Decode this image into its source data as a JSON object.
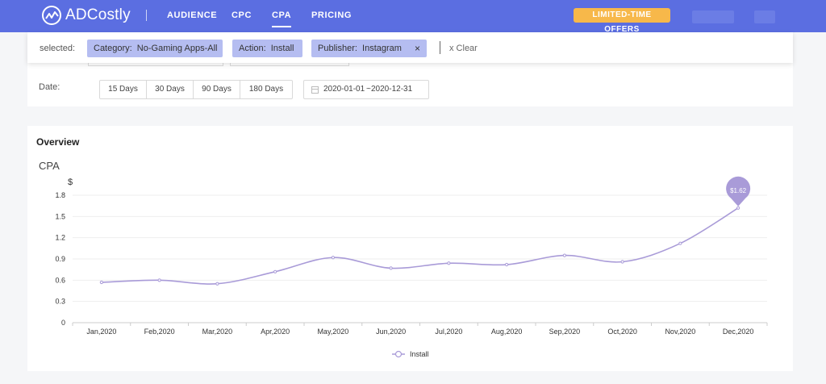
{
  "app": {
    "brand": "ADCostly"
  },
  "nav": {
    "items": [
      {
        "label": "AUDIENCE",
        "active": false
      },
      {
        "label": "CPC",
        "active": false
      },
      {
        "label": "CPA",
        "active": true
      },
      {
        "label": "PRICING",
        "active": false
      }
    ],
    "offers_label": "LIMITED-TIME OFFERS"
  },
  "filters": {
    "selected_label": "selected:",
    "chips": [
      {
        "label": "Category:  No-Gaming Apps-All",
        "removable": false
      },
      {
        "label": "Action:  Install",
        "removable": false
      },
      {
        "label": "Publisher:  Instagram",
        "removable": true
      }
    ],
    "clear_label": "x Clear",
    "date_label": "Date:",
    "date_options": [
      "15 Days",
      "30 Days",
      "90 Days",
      "180 Days"
    ],
    "range_start": "2020-01-01",
    "range_sep": "~",
    "range_end": "2020-12-31"
  },
  "overview": {
    "title": "Overview"
  },
  "chart_data": {
    "type": "line",
    "title": "CPA",
    "ylabel": "$",
    "xlabel": "",
    "categories": [
      "Jan,2020",
      "Feb,2020",
      "Mar,2020",
      "Apr,2020",
      "May,2020",
      "Jun,2020",
      "Jul,2020",
      "Aug,2020",
      "Sep,2020",
      "Oct,2020",
      "Nov,2020",
      "Dec,2020"
    ],
    "series": [
      {
        "name": "Install",
        "values": [
          0.57,
          0.6,
          0.55,
          0.72,
          0.92,
          0.77,
          0.84,
          0.82,
          0.95,
          0.86,
          1.12,
          1.62
        ]
      }
    ],
    "yticks": [
      "0",
      "0.3",
      "0.6",
      "0.9",
      "1.2",
      "1.5",
      "1.8"
    ],
    "ylim": [
      0,
      1.8
    ],
    "grid": true,
    "legend": "bottom",
    "marker_label": "$1.62",
    "color": "#a99bd8"
  }
}
